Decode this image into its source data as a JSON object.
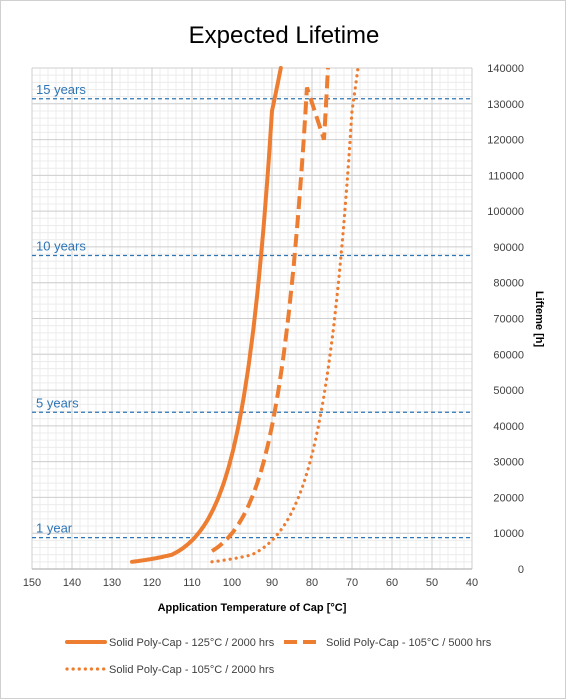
{
  "chart_data": {
    "type": "line",
    "title": "Expected Lifetime",
    "xlabel": "Application Temperature of Cap [°C]",
    "ylabel": "Lifteme [h]",
    "x_ticks": [
      150,
      140,
      130,
      120,
      110,
      100,
      90,
      80,
      70,
      60,
      50,
      40
    ],
    "y_ticks": [
      0,
      10000,
      20000,
      30000,
      40000,
      50000,
      60000,
      70000,
      80000,
      90000,
      100000,
      110000,
      120000,
      130000,
      140000
    ],
    "xlim": [
      150,
      40
    ],
    "ylim": [
      0,
      140000
    ],
    "x_reversed": true,
    "y_axis_side": "right",
    "grid": true,
    "legend_position": "bottom",
    "series_color": "#ed7d31",
    "reference_color": "#2e75b6",
    "reference_lines": [
      {
        "label": "1 year",
        "value": 8760
      },
      {
        "label": "5 years",
        "value": 43800
      },
      {
        "label": "10 years",
        "value": 87600
      },
      {
        "label": "15 years",
        "value": 131400
      }
    ],
    "series": [
      {
        "name": "Solid Poly-Cap - 125°C / 2000 hrs",
        "style": "solid",
        "x": [
          125,
          120,
          115,
          110,
          105,
          100,
          95,
          90,
          87.8
        ],
        "y": [
          2000,
          2828,
          4000,
          8000,
          16000,
          32000,
          64000,
          128000,
          140000
        ]
      },
      {
        "name": "Solid Poly-Cap - 105°C / 5000 hrs",
        "style": "dashed",
        "x": [
          105,
          100,
          95,
          90,
          85,
          80,
          77,
          76
        ],
        "y": [
          5000,
          10000,
          20000,
          40000,
          80000,
          160000,
          120000,
          140000
        ]
      },
      {
        "name": "Solid Poly-Cap - 105°C / 2000 hrs",
        "style": "dotted",
        "x": [
          105,
          100,
          95,
          90,
          85,
          80,
          75,
          70,
          68.5
        ],
        "y": [
          2000,
          2828,
          4000,
          8000,
          16000,
          32000,
          64000,
          128000,
          140000
        ]
      }
    ]
  }
}
